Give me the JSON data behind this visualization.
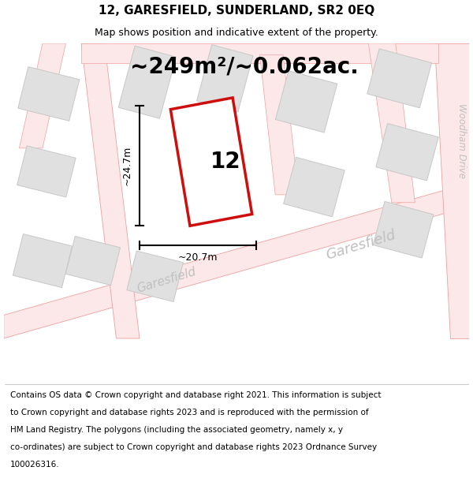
{
  "title_line1": "12, GARESFIELD, SUNDERLAND, SR2 0EQ",
  "title_line2": "Map shows position and indicative extent of the property.",
  "area_text": "~249m²/~0.062ac.",
  "property_number": "12",
  "dim_height": "~24.7m",
  "dim_width": "~20.7m",
  "footer_lines": [
    "Contains OS data © Crown copyright and database right 2021. This information is subject",
    "to Crown copyright and database rights 2023 and is reproduced with the permission of",
    "HM Land Registry. The polygons (including the associated geometry, namely x, y",
    "co-ordinates) are subject to Crown copyright and database rights 2023 Ordnance Survey",
    "100026316."
  ],
  "map_bg": "#f5f5f5",
  "road_fill": "#fce8e8",
  "road_edge": "#f0a0a0",
  "building_fill": "#e0e0e0",
  "building_edge": "#c8c8c8",
  "property_fill": "#ffffff",
  "property_edge": "#cc0000",
  "dim_color": "#000000",
  "street_color": "#c0c0c0",
  "title_fs": 11,
  "subtitle_fs": 9,
  "area_fs": 20,
  "num_fs": 20,
  "footer_fs": 7.5,
  "street_fs": 11,
  "dim_fs": 9
}
